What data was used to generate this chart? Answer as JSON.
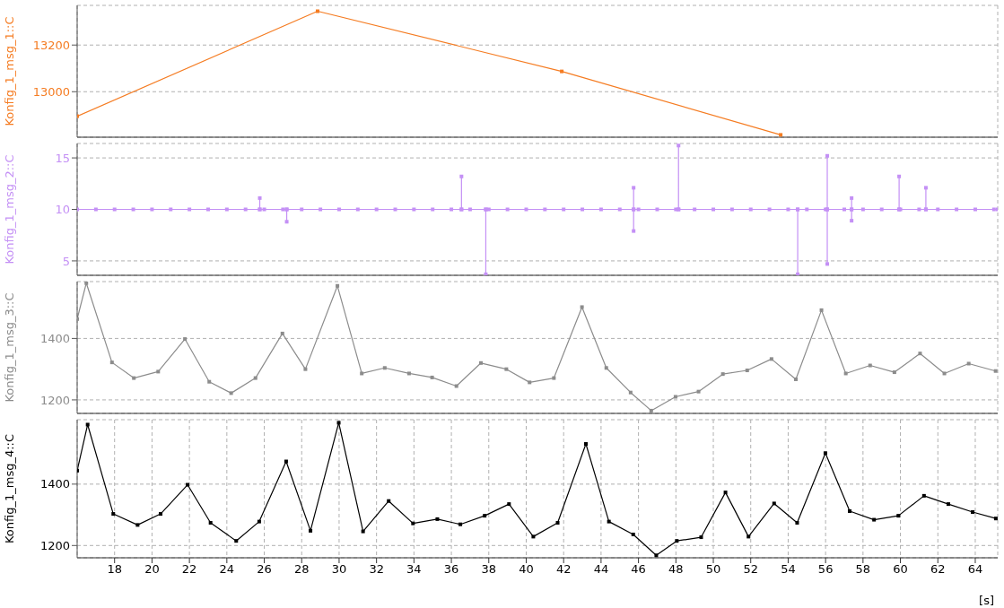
{
  "chart_data": [
    {
      "type": "line",
      "ylabel": "Konfig_1_msg_1::C",
      "x": [
        16,
        28.85,
        41.9,
        53.6
      ],
      "series": [
        {
          "color": "#f57c22",
          "values": [
            12895,
            13345,
            13087,
            12815
          ]
        }
      ],
      "xlim": [
        16,
        65.2
      ],
      "ylim": [
        12805,
        13370
      ],
      "xticks": [
        18,
        20,
        22,
        24,
        26,
        28,
        30,
        32,
        34,
        36,
        38,
        40,
        42,
        44,
        46,
        48,
        50,
        52,
        54,
        56,
        58,
        60,
        62,
        64
      ],
      "yticks": [
        13000,
        13200
      ],
      "grid": true,
      "marker": "square",
      "tick_labels": "y"
    },
    {
      "type": "line",
      "ylabel": "Konfig_1_msg_2::C",
      "x": [
        16,
        17,
        18,
        19,
        20,
        21,
        22,
        23,
        24,
        25,
        25.76,
        25.76,
        25.76,
        26,
        27,
        27.2,
        27.2,
        27.2,
        28,
        29,
        30,
        31,
        32,
        33,
        34,
        35,
        36,
        36.54,
        36.54,
        36.54,
        37,
        37.84,
        37.84,
        37.84,
        38,
        39,
        40,
        41,
        42,
        43,
        44,
        45,
        45.74,
        45.74,
        45.74,
        45.74,
        46,
        47,
        48,
        48.14,
        48.14,
        48.14,
        49,
        50,
        51,
        52,
        53,
        54,
        54.51,
        54.51,
        54.51,
        55,
        56,
        56.09,
        56.09,
        56.09,
        56.09,
        57,
        57.39,
        57.39,
        57.39,
        57.39,
        58,
        59,
        59.93,
        59.93,
        59.93,
        60,
        61,
        61.36,
        61.36,
        61.36,
        62,
        63,
        64,
        65,
        65.2
      ],
      "series": [
        {
          "color": "#c490f5",
          "values": [
            10,
            10,
            10,
            10,
            10,
            10,
            10,
            10,
            10,
            10,
            10,
            11.1,
            10,
            10,
            10,
            10,
            8.8,
            10,
            10,
            10,
            10,
            10,
            10,
            10,
            10,
            10,
            10,
            10,
            13.2,
            10,
            10,
            10,
            3.7,
            10,
            10,
            10,
            10,
            10,
            10,
            10,
            10,
            10,
            10,
            12.1,
            7.9,
            10,
            10,
            10,
            10,
            10,
            16.2,
            10,
            10,
            10,
            10,
            10,
            10,
            10,
            10,
            3.7,
            10,
            10,
            10,
            10,
            15.2,
            4.7,
            10,
            10,
            10,
            11.1,
            8.9,
            10,
            10,
            10,
            10,
            13.2,
            10,
            10,
            10,
            10,
            12.1,
            10,
            10,
            10,
            10,
            10,
            10
          ]
        }
      ],
      "xlim": [
        16,
        65.2
      ],
      "ylim": [
        3.6,
        16.4
      ],
      "xticks": [
        18,
        20,
        22,
        24,
        26,
        28,
        30,
        32,
        34,
        36,
        38,
        40,
        42,
        44,
        46,
        48,
        50,
        52,
        54,
        56,
        58,
        60,
        62,
        64
      ],
      "yticks": [
        5,
        10,
        15
      ],
      "grid": true,
      "marker": "square",
      "tick_labels": "y"
    },
    {
      "type": "line",
      "ylabel": "Konfig_1_msg_3::C",
      "x": [
        16,
        16.49,
        17.86,
        19.03,
        20.33,
        21.76,
        23.06,
        24.23,
        25.53,
        26.97,
        28.2,
        29.91,
        31.21,
        32.44,
        33.74,
        34.97,
        36.27,
        37.58,
        38.94,
        40.18,
        41.48,
        42.98,
        44.28,
        45.58,
        46.68,
        47.98,
        49.21,
        50.51,
        51.81,
        53.11,
        54.41,
        55.78,
        57.08,
        58.38,
        59.68,
        61.05,
        62.35,
        63.65,
        65.09
      ],
      "series": [
        {
          "color": "#8c8c8c",
          "values": [
            1463,
            1580,
            1322,
            1271,
            1292,
            1398,
            1259,
            1222,
            1271,
            1416,
            1300,
            1571,
            1286,
            1304,
            1286,
            1273,
            1245,
            1320,
            1300,
            1257,
            1271,
            1502,
            1304,
            1224,
            1165,
            1210,
            1227,
            1284,
            1296,
            1333,
            1267,
            1492,
            1286,
            1312,
            1290,
            1351,
            1286,
            1318,
            1294
          ]
        }
      ],
      "xlim": [
        16,
        65.2
      ],
      "ylim": [
        1156,
        1585
      ],
      "xticks": [
        18,
        20,
        22,
        24,
        26,
        28,
        30,
        32,
        34,
        36,
        38,
        40,
        42,
        44,
        46,
        48,
        50,
        52,
        54,
        56,
        58,
        60,
        62,
        64
      ],
      "yticks": [
        1200,
        1400
      ],
      "grid": true,
      "marker": "square",
      "tick_labels": "y"
    },
    {
      "type": "line",
      "ylabel": "Konfig_1_msg_4::C",
      "xlabel": "[s]",
      "x": [
        16,
        16.56,
        17.93,
        19.23,
        20.46,
        21.9,
        23.13,
        24.5,
        25.73,
        27.17,
        28.47,
        29.98,
        31.28,
        32.65,
        33.95,
        35.25,
        36.48,
        37.78,
        39.08,
        40.38,
        41.68,
        43.19,
        44.42,
        45.72,
        46.95,
        48.05,
        49.35,
        50.65,
        51.88,
        53.25,
        54.48,
        55.99,
        57.29,
        58.59,
        59.89,
        61.26,
        62.56,
        63.86,
        65.1
      ],
      "series": [
        {
          "color": "#000000",
          "values": [
            1444,
            1594,
            1303,
            1267,
            1303,
            1398,
            1274,
            1215,
            1278,
            1474,
            1248,
            1600,
            1246,
            1345,
            1272,
            1286,
            1269,
            1297,
            1335,
            1229,
            1274,
            1531,
            1278,
            1236,
            1168,
            1215,
            1227,
            1373,
            1229,
            1337,
            1274,
            1501,
            1312,
            1284,
            1297,
            1362,
            1335,
            1309,
            1288
          ]
        }
      ],
      "xlim": [
        16,
        65.2
      ],
      "ylim": [
        1160,
        1610
      ],
      "xticks": [
        18,
        20,
        22,
        24,
        26,
        28,
        30,
        32,
        34,
        36,
        38,
        40,
        42,
        44,
        46,
        48,
        50,
        52,
        54,
        56,
        58,
        60,
        62,
        64
      ],
      "yticks": [
        1200,
        1400
      ],
      "grid": true,
      "marker": "square"
    }
  ]
}
